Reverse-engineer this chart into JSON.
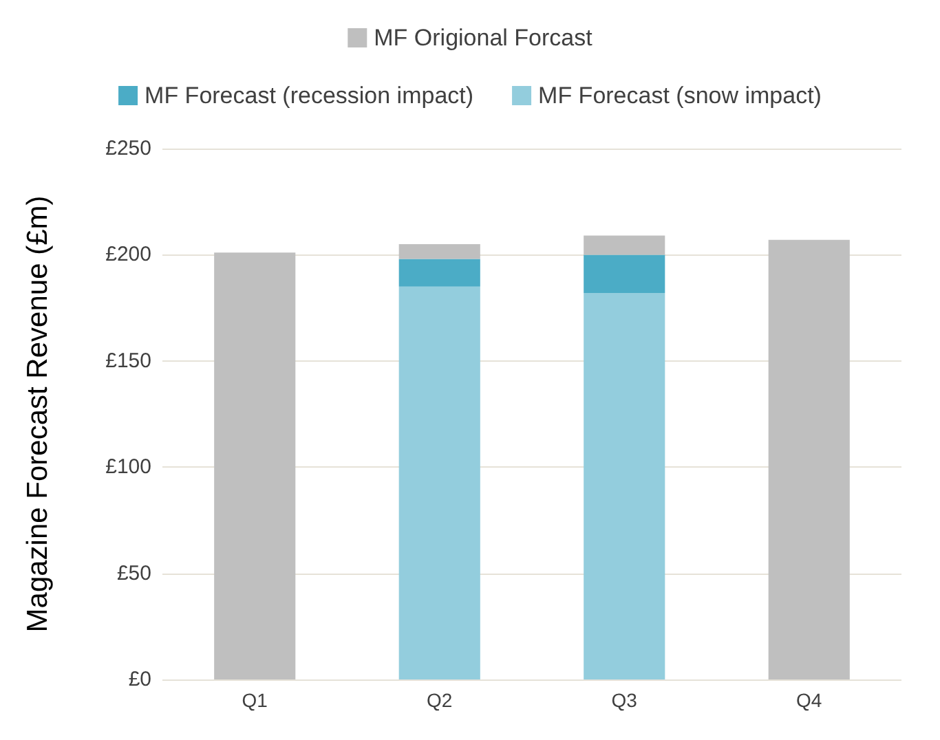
{
  "chart_data": {
    "type": "bar",
    "stacked": true,
    "ylabel": "Magazine Forecast Revenue (£m)",
    "categories": [
      "Q1",
      "Q2",
      "Q3",
      "Q4"
    ],
    "series": [
      {
        "name": "MF Forecast (snow impact)",
        "color": "#93cddd",
        "values": [
          null,
          185,
          182,
          null
        ]
      },
      {
        "name": "MF Forecast (recession impact)",
        "color": "#4bacc6",
        "values": [
          null,
          13,
          18,
          null
        ]
      },
      {
        "name": "MF Origional Forcast",
        "color": "#bfbfbf",
        "values": [
          201,
          7,
          9,
          207
        ]
      }
    ],
    "ylim": [
      0,
      250
    ],
    "yticks": [
      {
        "value": 0,
        "label": "£0"
      },
      {
        "value": 50,
        "label": "£50"
      },
      {
        "value": 100,
        "label": "£100"
      },
      {
        "value": 150,
        "label": "£150"
      },
      {
        "value": 200,
        "label": "£200"
      },
      {
        "value": 250,
        "label": "£250"
      }
    ],
    "grid": "y",
    "legend": "top"
  }
}
